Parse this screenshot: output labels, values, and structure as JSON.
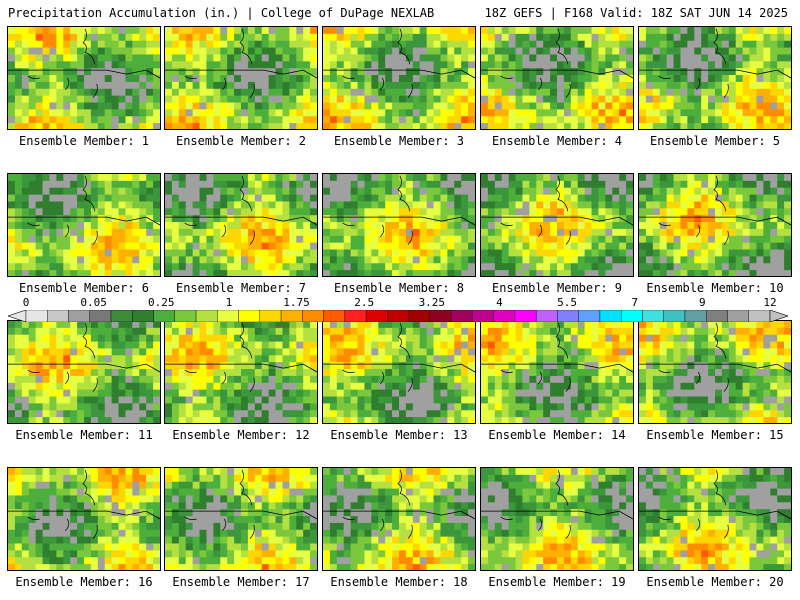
{
  "header": {
    "title_left": "Precipitation Accumulation (in.) | College of DuPage NEXLAB",
    "title_right": "18Z GEFS | F168 Valid: 18Z SAT JUN 14 2025"
  },
  "members": [
    {
      "label": "Ensemble Member: 1"
    },
    {
      "label": "Ensemble Member: 2"
    },
    {
      "label": "Ensemble Member: 3"
    },
    {
      "label": "Ensemble Member: 4"
    },
    {
      "label": "Ensemble Member: 5"
    },
    {
      "label": "Ensemble Member: 6"
    },
    {
      "label": "Ensemble Member: 7"
    },
    {
      "label": "Ensemble Member: 8"
    },
    {
      "label": "Ensemble Member: 9"
    },
    {
      "label": "Ensemble Member: 10"
    },
    {
      "label": "Ensemble Member: 11"
    },
    {
      "label": "Ensemble Member: 12"
    },
    {
      "label": "Ensemble Member: 13"
    },
    {
      "label": "Ensemble Member: 14"
    },
    {
      "label": "Ensemble Member: 15"
    },
    {
      "label": "Ensemble Member: 16"
    },
    {
      "label": "Ensemble Member: 17"
    },
    {
      "label": "Ensemble Member: 18"
    },
    {
      "label": "Ensemble Member: 19"
    },
    {
      "label": "Ensemble Member: 20"
    }
  ],
  "colorbar": {
    "labels": [
      "0",
      "0.05",
      "0.25",
      "1",
      "1.75",
      "2.5",
      "3.25",
      "4",
      "5.5",
      "7",
      "9",
      "12"
    ],
    "colors": [
      "#e6e6e6",
      "#c8c8c8",
      "#a0a0a0",
      "#787878",
      "#3c8c3c",
      "#2f7f2f",
      "#4caf3c",
      "#7cc83c",
      "#b4e040",
      "#e6ff40",
      "#ffff00",
      "#ffd700",
      "#ffb000",
      "#ff8c00",
      "#ff5a00",
      "#ff2020",
      "#e00000",
      "#c00000",
      "#a00000",
      "#900020",
      "#a00060",
      "#c00090",
      "#e000c0",
      "#ff00ff",
      "#c060ff",
      "#8080ff",
      "#60a0ff",
      "#00e0ff",
      "#00ffff",
      "#40e0e0",
      "#40c0c0",
      "#60a0a0",
      "#808080",
      "#a0a0a0",
      "#c0c0c0"
    ]
  }
}
